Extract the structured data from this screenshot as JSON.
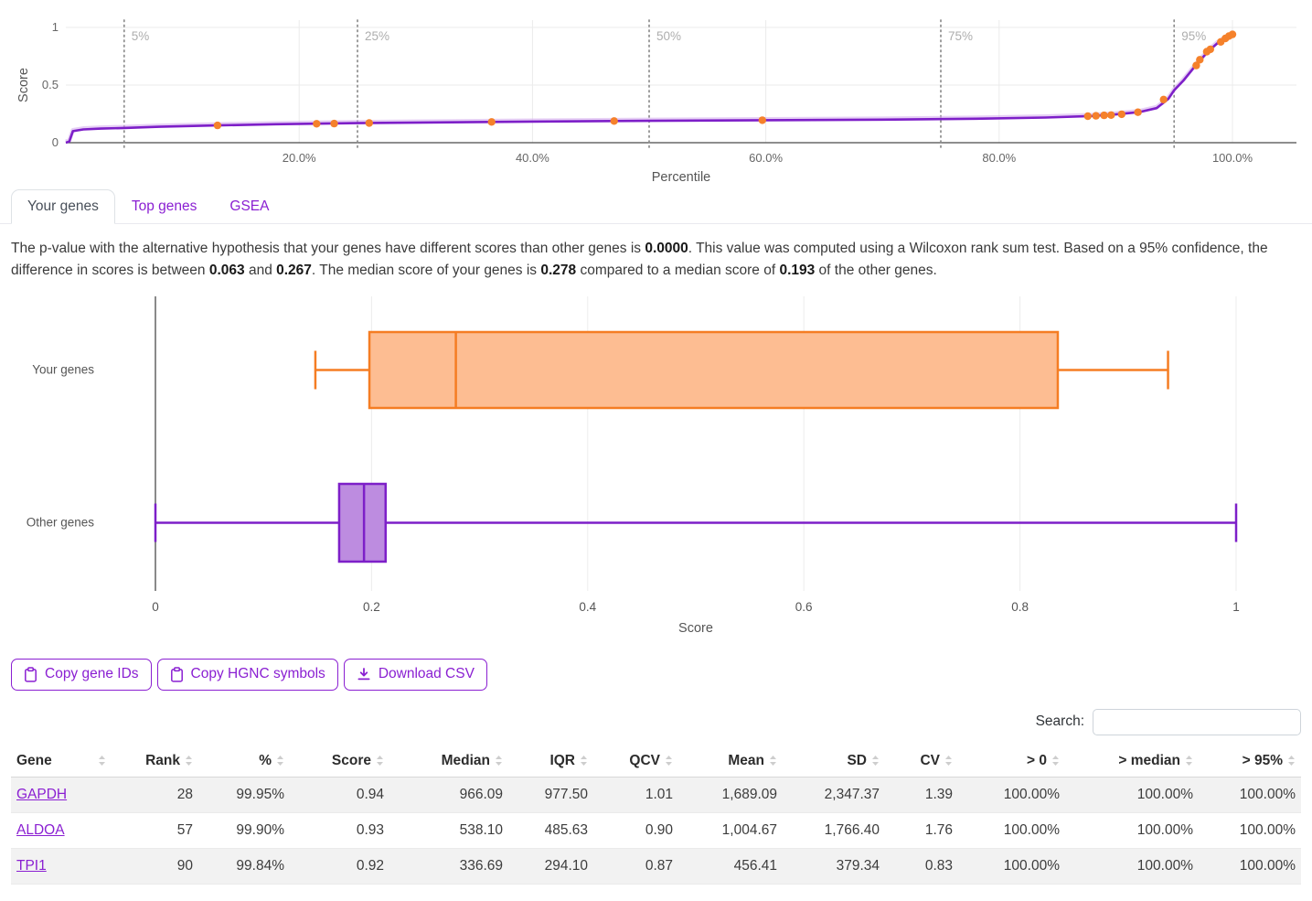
{
  "colors": {
    "purple": "#7d1fc8",
    "purple_fill": "#bd8ce0",
    "orange": "#f57d23",
    "orange_fill": "#fdbd92",
    "link_purple": "#8a1fd2"
  },
  "tabs": [
    {
      "label": "Your genes",
      "active": true
    },
    {
      "label": "Top genes",
      "active": false
    },
    {
      "label": "GSEA",
      "active": false
    }
  ],
  "summary": {
    "segments": [
      {
        "t": "The p-value with the alternative hypothesis that your genes have different scores than other genes is "
      },
      {
        "t": "0.0000",
        "b": true
      },
      {
        "t": ". This value was computed using a Wilcoxon rank sum test. Based on a 95% confidence, the difference in scores is between "
      },
      {
        "t": "0.063",
        "b": true
      },
      {
        "t": " and "
      },
      {
        "t": "0.267",
        "b": true
      },
      {
        "t": ". The median score of your genes is "
      },
      {
        "t": "0.278",
        "b": true
      },
      {
        "t": " compared to a median score of "
      },
      {
        "t": "0.193",
        "b": true
      },
      {
        "t": " of the other genes."
      }
    ]
  },
  "chart_data": [
    {
      "type": "line",
      "title": "",
      "xlabel": "Percentile",
      "ylabel": "Score",
      "xlim": [
        0,
        100
      ],
      "ylim": [
        0,
        1
      ],
      "grid": true,
      "x_ticks": [
        {
          "v": 20,
          "label": "20.0%"
        },
        {
          "v": 40,
          "label": "40.0%"
        },
        {
          "v": 60,
          "label": "60.0%"
        },
        {
          "v": 80,
          "label": "80.0%"
        },
        {
          "v": 100,
          "label": "100.0%"
        }
      ],
      "y_ticks": [
        {
          "v": 0,
          "label": "0"
        },
        {
          "v": 0.5,
          "label": "0.5"
        },
        {
          "v": 1,
          "label": "1"
        }
      ],
      "percentile_markers": [
        {
          "v": 5,
          "label": "5%"
        },
        {
          "v": 25,
          "label": "25%"
        },
        {
          "v": 50,
          "label": "50%"
        },
        {
          "v": 75,
          "label": "75%"
        },
        {
          "v": 95,
          "label": "95%"
        }
      ],
      "line_color": "#7d1fc8",
      "point_color": "#f5812b",
      "curve": [
        [
          0,
          0
        ],
        [
          0.3,
          0.01
        ],
        [
          0.6,
          0.1
        ],
        [
          1.5,
          0.115
        ],
        [
          3,
          0.122
        ],
        [
          5,
          0.128
        ],
        [
          8,
          0.138
        ],
        [
          13,
          0.15
        ],
        [
          18,
          0.16
        ],
        [
          25,
          0.17
        ],
        [
          32,
          0.176
        ],
        [
          40,
          0.183
        ],
        [
          50,
          0.19
        ],
        [
          60,
          0.195
        ],
        [
          70,
          0.2
        ],
        [
          78,
          0.208
        ],
        [
          84,
          0.218
        ],
        [
          88,
          0.232
        ],
        [
          90,
          0.245
        ],
        [
          92,
          0.265
        ],
        [
          93.5,
          0.3
        ],
        [
          94.5,
          0.38
        ],
        [
          95,
          0.455
        ],
        [
          95.8,
          0.54
        ],
        [
          96.8,
          0.665
        ],
        [
          97.5,
          0.745
        ],
        [
          98,
          0.8
        ],
        [
          98.7,
          0.862
        ],
        [
          99.3,
          0.9
        ],
        [
          99.8,
          0.928
        ],
        [
          100,
          0.94
        ]
      ],
      "your_gene_points": [
        [
          13,
          0.15
        ],
        [
          21.5,
          0.164
        ],
        [
          23,
          0.166
        ],
        [
          26,
          0.171
        ],
        [
          36.5,
          0.18
        ],
        [
          47,
          0.188
        ],
        [
          59.7,
          0.195
        ],
        [
          87.6,
          0.23
        ],
        [
          88.3,
          0.233
        ],
        [
          89,
          0.237
        ],
        [
          89.6,
          0.24
        ],
        [
          90.5,
          0.247
        ],
        [
          91.9,
          0.264
        ],
        [
          94.1,
          0.375
        ],
        [
          96.9,
          0.67
        ],
        [
          97.2,
          0.72
        ],
        [
          97.8,
          0.79
        ],
        [
          98.1,
          0.81
        ],
        [
          99,
          0.875
        ],
        [
          99.4,
          0.905
        ],
        [
          99.7,
          0.925
        ],
        [
          100,
          0.94
        ]
      ]
    },
    {
      "type": "boxplot",
      "xlabel": "Score",
      "xlim": [
        0,
        1
      ],
      "x_ticks": [
        {
          "v": 0,
          "label": "0"
        },
        {
          "v": 0.2,
          "label": "0.2"
        },
        {
          "v": 0.4,
          "label": "0.4"
        },
        {
          "v": 0.6,
          "label": "0.6"
        },
        {
          "v": 0.8,
          "label": "0.8"
        },
        {
          "v": 1,
          "label": "1"
        }
      ],
      "series": [
        {
          "name": "Your genes",
          "min": 0.148,
          "q1": 0.198,
          "median": 0.278,
          "q3": 0.835,
          "max": 0.937,
          "color": "#f57d23",
          "fill": "#fdbd92"
        },
        {
          "name": "Other genes",
          "min": 0,
          "q1": 0.17,
          "median": 0.193,
          "q3": 0.213,
          "max": 1,
          "color": "#7d1fc8",
          "fill": "#bd8ce0"
        }
      ]
    }
  ],
  "toolbar": {
    "buttons": [
      {
        "label": "Copy gene IDs",
        "icon": "clipboard-icon"
      },
      {
        "label": "Copy HGNC symbols",
        "icon": "clipboard-icon"
      },
      {
        "label": "Download CSV",
        "icon": "download-icon"
      }
    ]
  },
  "search": {
    "label": "Search:",
    "value": "",
    "placeholder": ""
  },
  "table": {
    "columns": [
      {
        "label": "Gene"
      },
      {
        "label": "Rank"
      },
      {
        "label": "%"
      },
      {
        "label": "Score"
      },
      {
        "label": "Median"
      },
      {
        "label": "IQR"
      },
      {
        "label": "QCV"
      },
      {
        "label": "Mean"
      },
      {
        "label": "SD"
      },
      {
        "label": "CV"
      },
      {
        "label": "> 0"
      },
      {
        "label": "> median"
      },
      {
        "label": "> 95%"
      }
    ],
    "rows": [
      {
        "gene": "GAPDH",
        "cells": [
          "28",
          "99.95%",
          "0.94",
          "966.09",
          "977.50",
          "1.01",
          "1,689.09",
          "2,347.37",
          "1.39",
          "100.00%",
          "100.00%",
          "100.00%"
        ]
      },
      {
        "gene": "ALDOA",
        "cells": [
          "57",
          "99.90%",
          "0.93",
          "538.10",
          "485.63",
          "0.90",
          "1,004.67",
          "1,766.40",
          "1.76",
          "100.00%",
          "100.00%",
          "100.00%"
        ]
      },
      {
        "gene": "TPI1",
        "cells": [
          "90",
          "99.84%",
          "0.92",
          "336.69",
          "294.10",
          "0.87",
          "456.41",
          "379.34",
          "0.83",
          "100.00%",
          "100.00%",
          "100.00%"
        ]
      }
    ]
  }
}
